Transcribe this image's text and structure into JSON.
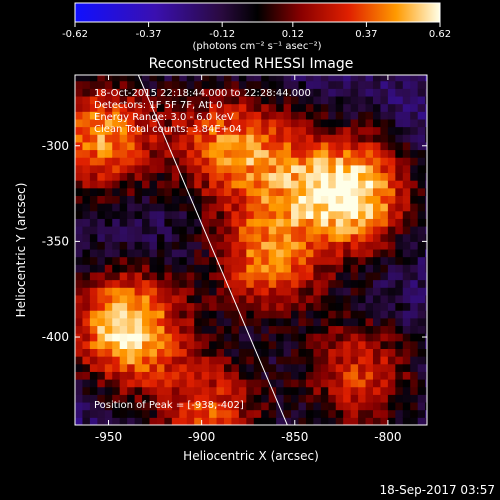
{
  "colorbar": {
    "ticks": [
      "-0.62",
      "-0.37",
      "-0.12",
      "0.12",
      "0.37",
      "0.62"
    ],
    "tick_values": [
      -0.62,
      -0.37,
      -0.12,
      0.12,
      0.37,
      0.62
    ],
    "range": [
      -0.62,
      0.62
    ],
    "units_label": "(photons cm⁻² s⁻¹ asec⁻²)"
  },
  "chart_data": {
    "type": "heatmap",
    "title": "Reconstructed RHESSI Image",
    "xlabel": "Heliocentric X (arcsec)",
    "ylabel": "Heliocentric Y (arcsec)",
    "xlim": [
      -968,
      -779
    ],
    "ylim": [
      -446,
      -263
    ],
    "x_ticks": [
      "-950",
      "-900",
      "-850",
      "-800"
    ],
    "x_tick_values": [
      -950,
      -900,
      -850,
      -800
    ],
    "y_ticks": [
      "-300",
      "-350",
      "-400"
    ],
    "y_tick_values": [
      -300,
      -350,
      -400
    ],
    "grid": false,
    "colormap": "blue-black-red-yellow-white",
    "sources": [
      {
        "x": -818,
        "y": -325,
        "peak": 0.6
      },
      {
        "x": -940,
        "y": -395,
        "peak": 0.62
      },
      {
        "x": -955,
        "y": -295,
        "peak": 0.45
      },
      {
        "x": -890,
        "y": -298,
        "peak": 0.3
      },
      {
        "x": -865,
        "y": -360,
        "peak": 0.38
      },
      {
        "x": -895,
        "y": -440,
        "peak": 0.32
      },
      {
        "x": -815,
        "y": -420,
        "peak": 0.3
      },
      {
        "x": -858,
        "y": -310,
        "peak": 0.15
      }
    ],
    "limb_line": {
      "x1": -934,
      "y1": -263,
      "x2": -854,
      "y2": -446
    },
    "annotations": {
      "time": "18-Oct-2015 22:18:44.000 to 22:28:44.000",
      "detectors": "Detectors: 1F 5F 7F, Att 0",
      "energy": "Energy Range: 3.0 - 6.0 keV",
      "method": "Clean     Total counts: 3.84E+04",
      "peak": "Position of Peak = [-938,-402]"
    }
  },
  "footer": {
    "timestamp": "18-Sep-2017 03:57"
  }
}
